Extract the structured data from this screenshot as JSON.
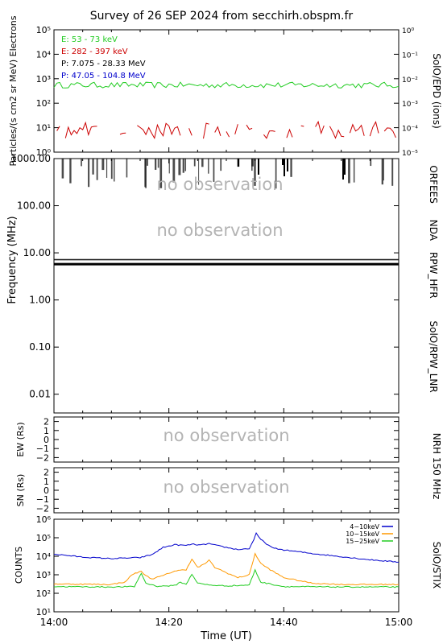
{
  "title": "Survey of 26 SEP 2024 from secchirh.obspm.fr",
  "colors": {
    "green": "#22cc22",
    "red": "#cc0000",
    "black": "#000000",
    "blue": "#0000cc",
    "orange": "#ff9900",
    "noobs": "#b4b4b4"
  },
  "chart_data": [
    {
      "panel": "SolO/EPD",
      "type": "line",
      "ylabel": "Particles/(s cm2 sr MeV) Electrons",
      "right_label": "SolO/EPD (ions)",
      "ylog": true,
      "ylim": [
        1,
        100000
      ],
      "y2lim": [
        1e-05,
        1
      ],
      "y_ticks": [
        "10⁰",
        "10¹",
        "10²",
        "10³",
        "10⁴",
        "10⁵"
      ],
      "y2_ticks": [
        "10⁻⁵",
        "10⁻⁴",
        "10⁻³",
        "10⁻²",
        "10⁻¹",
        "10⁰"
      ],
      "legend_position": "top-left",
      "series": [
        {
          "name": "E: 53 - 73 keV",
          "color": "#22cc22",
          "level": 550,
          "spread": 0.12
        },
        {
          "name": "E: 282 - 397 keV",
          "color": "#cc0000",
          "level": 8,
          "spread": 0.35,
          "gaps": true
        },
        {
          "name": "P: 7.075 - 28.33 MeV",
          "color": "#000000"
        },
        {
          "name": "P: 47.05 - 104.8 MeV",
          "color": "#0000cc"
        }
      ]
    },
    {
      "panel": "SolO/RPW",
      "type": "heatmap",
      "ylabel": "Frequency (MHz)",
      "ylog": true,
      "ylim": [
        0.004,
        1000
      ],
      "y_ticks": [
        "0.01",
        "0.10",
        "1.00",
        "10.00",
        "100.00",
        "1000.00"
      ],
      "bands": [
        {
          "label": "SolO/RPW_LNR",
          "range_mhz": [
            0.004,
            0.98
          ]
        },
        {
          "label": "RPW_HFR",
          "range_mhz": [
            0.98,
            11.5
          ]
        },
        {
          "label": "NDA",
          "range_mhz": [
            11.5,
            80
          ],
          "text": "no observation"
        },
        {
          "label": "ORFEES",
          "range_mhz": [
            80,
            1000
          ],
          "text": "no observation"
        }
      ]
    },
    {
      "panel": "NRH 150 MHz EW",
      "type": "scatter",
      "ylabel": "EW (Rs)",
      "right_label": "NRH 150 MHz",
      "ylim": [
        -2.5,
        2.5
      ],
      "y_ticks": [
        "2",
        "1",
        "0",
        "−1",
        "−2"
      ],
      "text": "no observation"
    },
    {
      "panel": "NRH 150 MHz SN",
      "type": "scatter",
      "ylabel": "SN (Rs)",
      "ylim": [
        -2.5,
        2.5
      ],
      "y_ticks": [
        "2",
        "1",
        "0",
        "−1",
        "−2"
      ],
      "text": "no observation"
    },
    {
      "panel": "SolO/STIX",
      "type": "line",
      "ylabel": "COUNTS",
      "right_label": "SolO/STIX",
      "ylog": true,
      "ylim": [
        10,
        1000000
      ],
      "y_ticks": [
        "10¹",
        "10²",
        "10³",
        "10⁴",
        "10⁵",
        "10⁶"
      ],
      "legend_position": "top-right",
      "series": [
        {
          "name": "4−10keV",
          "color": "#0000cc",
          "points": [
            [
              0,
              13000
            ],
            [
              5,
              9000
            ],
            [
              10,
              7500
            ],
            [
              15,
              8500
            ],
            [
              17,
              12000
            ],
            [
              19,
              30000
            ],
            [
              21,
              42000
            ],
            [
              23,
              38000
            ],
            [
              24,
              45000
            ],
            [
              25.5,
              40000
            ],
            [
              27,
              48000
            ],
            [
              28,
              40000
            ],
            [
              30,
              30000
            ],
            [
              32,
              23000
            ],
            [
              34,
              26000
            ],
            [
              34.8,
              80000
            ],
            [
              35.2,
              170000
            ],
            [
              36,
              80000
            ],
            [
              38,
              28000
            ],
            [
              40,
              22000
            ],
            [
              45,
              14000
            ],
            [
              50,
              9500
            ],
            [
              55,
              6500
            ],
            [
              60,
              4800
            ]
          ]
        },
        {
          "name": "10−15keV",
          "color": "#ff9900",
          "points": [
            [
              0,
              320
            ],
            [
              10,
              300
            ],
            [
              12.5,
              420
            ],
            [
              13.5,
              1000
            ],
            [
              14.5,
              1300
            ],
            [
              15.2,
              1500
            ],
            [
              16,
              900
            ],
            [
              17,
              600
            ],
            [
              19,
              900
            ],
            [
              21,
              1600
            ],
            [
              23,
              1900
            ],
            [
              24,
              7000
            ],
            [
              25,
              2500
            ],
            [
              26,
              3500
            ],
            [
              27,
              6000
            ],
            [
              28,
              2500
            ],
            [
              30,
              1300
            ],
            [
              32,
              700
            ],
            [
              34,
              1000
            ],
            [
              35,
              14000
            ],
            [
              36,
              4000
            ],
            [
              38,
              1600
            ],
            [
              40,
              700
            ],
            [
              45,
              350
            ],
            [
              50,
              300
            ],
            [
              60,
              300
            ]
          ]
        },
        {
          "name": "15−25keV",
          "color": "#22cc22",
          "points": [
            [
              0,
              230
            ],
            [
              10,
              220
            ],
            [
              14,
              230
            ],
            [
              15.2,
              1200
            ],
            [
              16,
              350
            ],
            [
              18,
              240
            ],
            [
              21,
              260
            ],
            [
              22,
              400
            ],
            [
              23,
              300
            ],
            [
              24,
              1100
            ],
            [
              25,
              350
            ],
            [
              27,
              280
            ],
            [
              30,
              250
            ],
            [
              34,
              280
            ],
            [
              35,
              1800
            ],
            [
              36,
              400
            ],
            [
              40,
              230
            ],
            [
              50,
              220
            ],
            [
              60,
              220
            ]
          ]
        }
      ]
    }
  ],
  "x_axis": {
    "label": "Time (UT)",
    "xlim": [
      0,
      60
    ],
    "ticks": [
      [
        0,
        "14:00"
      ],
      [
        20,
        "14:20"
      ],
      [
        40,
        "14:40"
      ],
      [
        60,
        "15:00"
      ]
    ]
  }
}
